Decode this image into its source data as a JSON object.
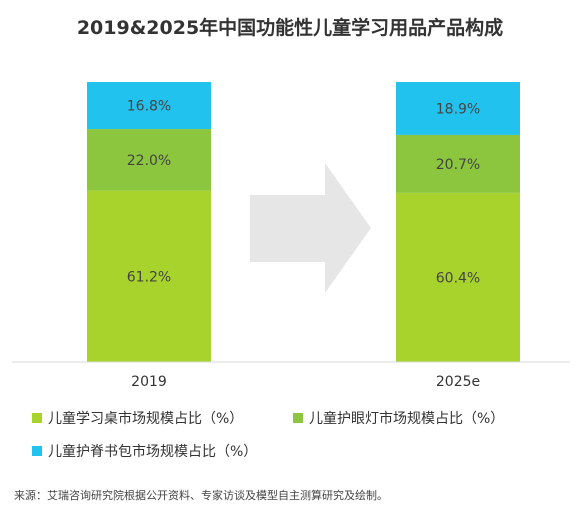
{
  "chart_data": {
    "type": "bar",
    "stacked": true,
    "title": "2019&2025年中国功能性儿童学习用品产品构成",
    "categories": [
      "2019",
      "2025e"
    ],
    "value_format": "%",
    "ylim": [
      0,
      100
    ],
    "grid": false,
    "legend_position": "bottom",
    "series": [
      {
        "name": "儿童学习桌市场规模占比（%）",
        "values": [
          61.2,
          60.4
        ],
        "color": "#a8d32c"
      },
      {
        "name": "儿童护眼灯市场规模占比（%）",
        "values": [
          22.0,
          20.7
        ],
        "color": "#8cc63f"
      },
      {
        "name": "儿童护脊书包市场规模占比（%）",
        "values": [
          16.8,
          18.9
        ],
        "color": "#22c2ee"
      }
    ],
    "source": "来源：艾瑞咨询研究院根据公开资料、专家访谈及模型自主测算研究及绘制。"
  },
  "colors": {
    "arrow": "#e6e6e6",
    "baseline": "#d9d9d9"
  }
}
